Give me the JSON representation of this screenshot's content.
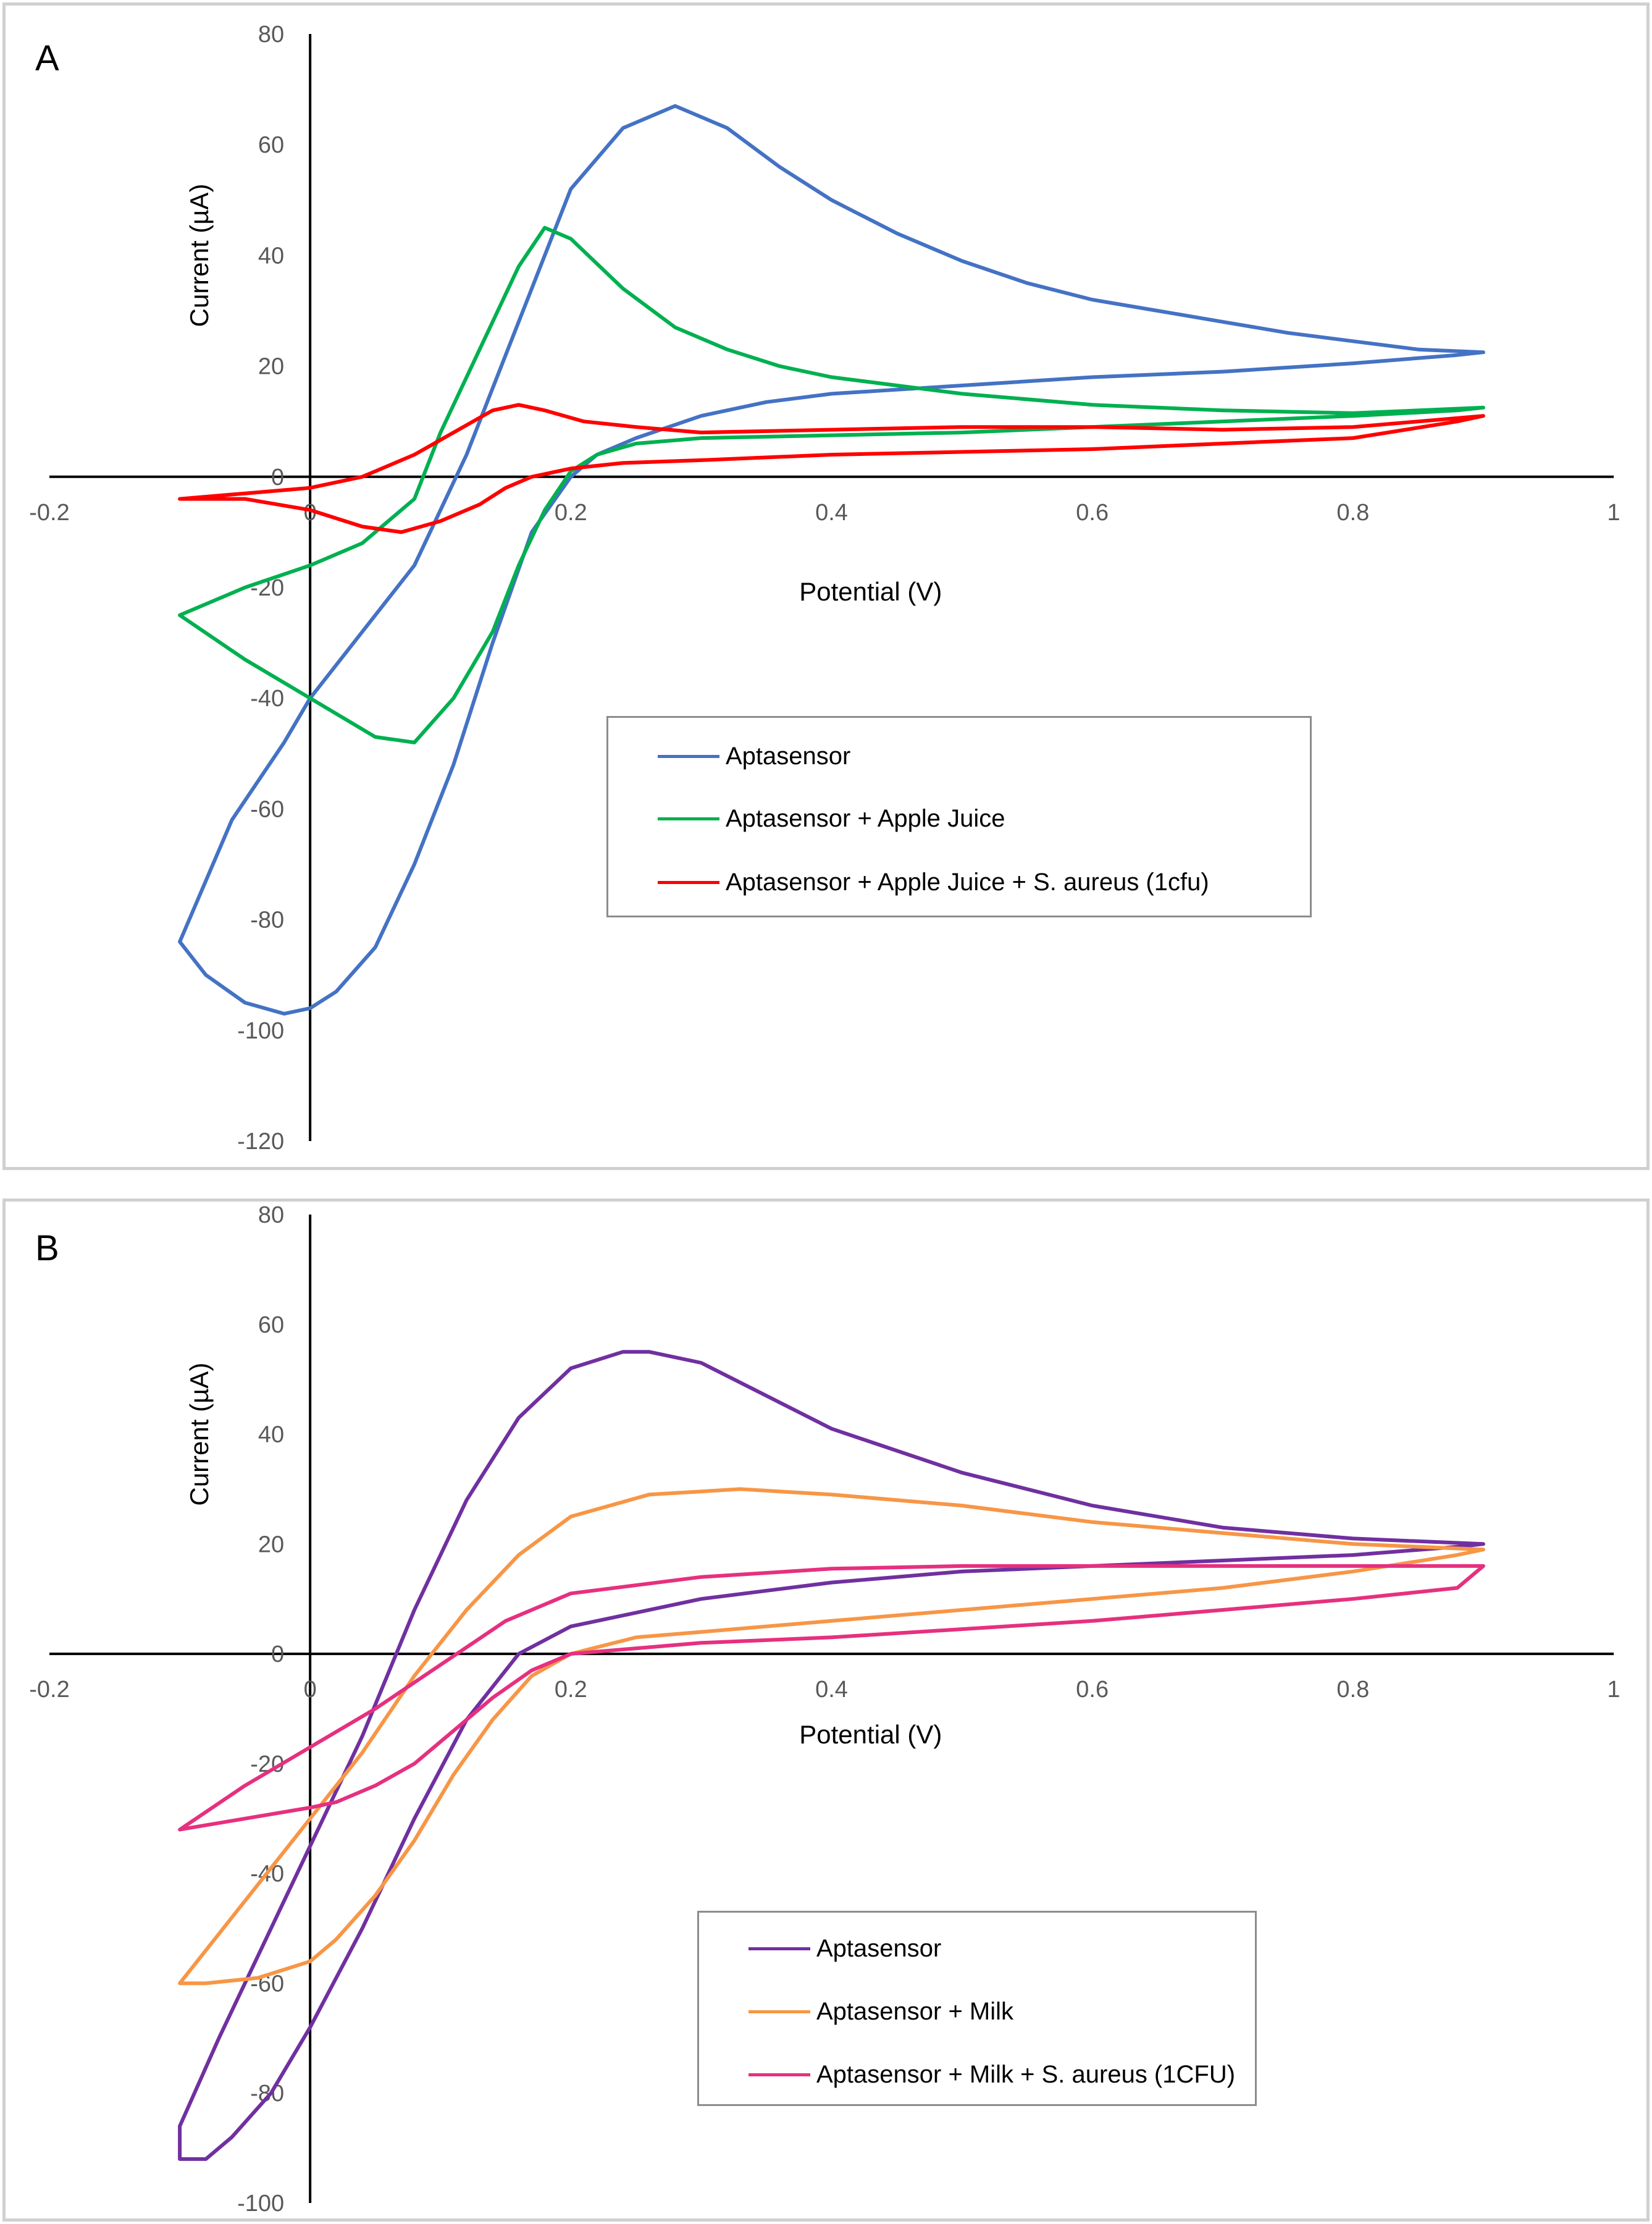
{
  "panels": [
    {
      "id": "A",
      "label": "A",
      "chart_data": {
        "type": "line",
        "title": "",
        "xlabel": "Potential (V)",
        "ylabel": "Current (µA)",
        "xlim": [
          -0.2,
          1
        ],
        "ylim": [
          -120,
          80
        ],
        "xticks": [
          -0.2,
          0,
          0.2,
          0.4,
          0.6,
          0.8,
          1
        ],
        "xtick_labels": [
          "-0.2",
          "0",
          "0.2",
          "0.4",
          "0.6",
          "0.8",
          "1"
        ],
        "yticks": [
          80,
          60,
          40,
          20,
          0,
          -20,
          -40,
          -60,
          -80,
          -100,
          -120
        ],
        "ytick_labels": [
          "80",
          "60",
          "40",
          "20",
          "0",
          "-20",
          "-40",
          "-60",
          "-80",
          "-100",
          "-120"
        ],
        "legend_position": "center-right",
        "series": [
          {
            "name": "Aptasensor",
            "color": "#4472C4",
            "x": [
              -0.1,
              -0.06,
              -0.02,
              0.0,
              0.04,
              0.08,
              0.12,
              0.16,
              0.2,
              0.24,
              0.28,
              0.32,
              0.36,
              0.4,
              0.45,
              0.5,
              0.55,
              0.6,
              0.65,
              0.7,
              0.75,
              0.8,
              0.85,
              0.9,
              0.88,
              0.8,
              0.7,
              0.6,
              0.5,
              0.4,
              0.35,
              0.3,
              0.25,
              0.22,
              0.2,
              0.17,
              0.14,
              0.11,
              0.08,
              0.05,
              0.02,
              0.0,
              -0.02,
              -0.05,
              -0.08,
              -0.1
            ],
            "y": [
              -84,
              -62,
              -48,
              -40,
              -28,
              -16,
              4,
              28,
              52,
              63,
              67,
              63,
              56,
              50,
              44,
              39,
              35,
              32,
              30,
              28,
              26,
              24.5,
              23,
              22.5,
              22,
              20.5,
              19,
              18,
              16.5,
              15,
              13.5,
              11,
              7,
              4,
              0,
              -10,
              -30,
              -52,
              -70,
              -85,
              -93,
              -96,
              -97,
              -95,
              -90,
              -84
            ]
          },
          {
            "name": "Aptasensor + Apple Juice",
            "color": "#00B050",
            "x": [
              -0.1,
              -0.05,
              0.0,
              0.04,
              0.08,
              0.1,
              0.13,
              0.16,
              0.18,
              0.2,
              0.24,
              0.28,
              0.32,
              0.36,
              0.4,
              0.5,
              0.6,
              0.7,
              0.8,
              0.9,
              0.88,
              0.8,
              0.7,
              0.6,
              0.5,
              0.4,
              0.3,
              0.25,
              0.22,
              0.2,
              0.18,
              0.16,
              0.14,
              0.11,
              0.08,
              0.05,
              0.0,
              -0.05,
              -0.1
            ],
            "y": [
              -25,
              -20,
              -16,
              -12,
              -4,
              8,
              23,
              38,
              45,
              43,
              34,
              27,
              23,
              20,
              18,
              15,
              13,
              12,
              11.5,
              12.5,
              12,
              11,
              10,
              9,
              8,
              7.5,
              7,
              6,
              4,
              1,
              -6,
              -16,
              -28,
              -40,
              -48,
              -47,
              -40,
              -33,
              -25
            ]
          },
          {
            "name": "Aptasensor + Apple Juice + S. aureus (1cfu)",
            "color": "#FF0000",
            "x": [
              -0.1,
              -0.05,
              0.0,
              0.04,
              0.08,
              0.11,
              0.14,
              0.16,
              0.18,
              0.21,
              0.25,
              0.3,
              0.4,
              0.5,
              0.6,
              0.7,
              0.8,
              0.9,
              0.88,
              0.8,
              0.7,
              0.6,
              0.5,
              0.4,
              0.3,
              0.24,
              0.2,
              0.17,
              0.15,
              0.13,
              0.1,
              0.07,
              0.04,
              0.0,
              -0.05,
              -0.1
            ],
            "y": [
              -4,
              -3,
              -2,
              0,
              4,
              8,
              12,
              13,
              12,
              10,
              9,
              8,
              8.5,
              9,
              9,
              8.5,
              9,
              11,
              10,
              7,
              6,
              5,
              4.5,
              4,
              3,
              2.5,
              1.5,
              0,
              -2,
              -5,
              -8,
              -10,
              -9,
              -6,
              -4,
              -4
            ]
          }
        ]
      },
      "legend": [
        "Aptasensor",
        "Aptasensor + Apple Juice",
        "Aptasensor + Apple Juice + S. aureus (1cfu)"
      ]
    },
    {
      "id": "B",
      "label": "B",
      "chart_data": {
        "type": "line",
        "title": "",
        "xlabel": "Potential (V)",
        "ylabel": "Current (µA)",
        "xlim": [
          -0.2,
          1
        ],
        "ylim": [
          -100,
          80
        ],
        "xticks": [
          -0.2,
          0,
          0.2,
          0.4,
          0.6,
          0.8,
          1
        ],
        "xtick_labels": [
          "-0.2",
          "0",
          "0.2",
          "0.4",
          "0.6",
          "0.8",
          "1"
        ],
        "yticks": [
          80,
          60,
          40,
          20,
          0,
          -20,
          -40,
          -60,
          -80,
          -100
        ],
        "ytick_labels": [
          "80",
          "60",
          "40",
          "20",
          "0",
          "-20",
          "-40",
          "-60",
          "-80",
          "-100"
        ],
        "legend_position": "bottom-center",
        "series": [
          {
            "name": "Aptasensor",
            "color": "#7030A0",
            "x": [
              -0.1,
              -0.07,
              -0.04,
              0.0,
              0.04,
              0.08,
              0.12,
              0.16,
              0.2,
              0.24,
              0.26,
              0.3,
              0.35,
              0.4,
              0.5,
              0.6,
              0.7,
              0.8,
              0.9,
              0.88,
              0.8,
              0.7,
              0.6,
              0.5,
              0.4,
              0.3,
              0.24,
              0.2,
              0.16,
              0.12,
              0.08,
              0.04,
              0.0,
              -0.03,
              -0.06,
              -0.08,
              -0.1
            ],
            "y": [
              -86,
              -70,
              -55,
              -35,
              -15,
              8,
              28,
              43,
              52,
              55,
              55,
              53,
              47,
              41,
              33,
              27,
              23,
              21,
              20,
              19.5,
              18,
              17,
              16,
              15,
              13,
              10,
              7,
              5,
              0,
              -12,
              -30,
              -50,
              -68,
              -80,
              -88,
              -92,
              -92
            ]
          },
          {
            "name": "Aptasensor + Milk",
            "color": "#F79646",
            "x": [
              -0.1,
              -0.06,
              -0.02,
              0.0,
              0.04,
              0.08,
              0.12,
              0.16,
              0.2,
              0.26,
              0.33,
              0.4,
              0.5,
              0.6,
              0.7,
              0.8,
              0.9,
              0.88,
              0.8,
              0.7,
              0.6,
              0.5,
              0.4,
              0.3,
              0.25,
              0.2,
              0.17,
              0.14,
              0.11,
              0.08,
              0.05,
              0.02,
              0.0,
              -0.04,
              -0.08,
              -0.1
            ],
            "y": [
              -60,
              -48,
              -36,
              -30,
              -18,
              -4,
              8,
              18,
              25,
              29,
              30,
              29,
              27,
              24,
              22,
              20,
              19,
              18,
              15,
              12,
              10,
              8,
              6,
              4,
              3,
              0,
              -4,
              -12,
              -22,
              -34,
              -44,
              -52,
              -56,
              -59,
              -60,
              -60
            ]
          },
          {
            "name": "Aptasensor + Milk + S. aureus (1CFU)",
            "color": "#E6307F",
            "x": [
              -0.1,
              -0.05,
              0.0,
              0.05,
              0.1,
              0.15,
              0.2,
              0.3,
              0.4,
              0.5,
              0.6,
              0.7,
              0.8,
              0.9,
              0.88,
              0.8,
              0.7,
              0.6,
              0.5,
              0.4,
              0.3,
              0.2,
              0.17,
              0.14,
              0.11,
              0.08,
              0.05,
              0.02,
              0.0,
              -0.05,
              -0.1
            ],
            "y": [
              -32,
              -24,
              -17,
              -10,
              -2,
              6,
              11,
              14,
              15.5,
              16,
              16,
              16,
              16,
              16,
              12,
              10,
              8,
              6,
              4.5,
              3,
              2,
              0,
              -3,
              -8,
              -14,
              -20,
              -24,
              -27,
              -28,
              -30,
              -32
            ]
          }
        ]
      },
      "legend": [
        "Aptasensor",
        "Aptasensor + Milk",
        "Aptasensor + Milk + S. aureus (1CFU)"
      ]
    }
  ]
}
